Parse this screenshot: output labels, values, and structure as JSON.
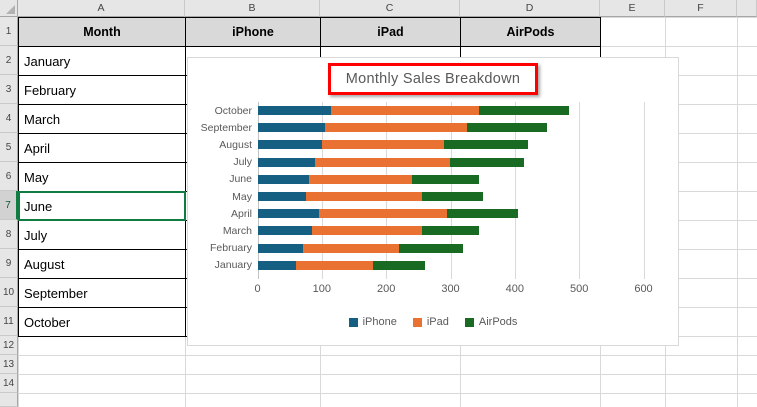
{
  "spreadsheet": {
    "column_headers": [
      "A",
      "B",
      "C",
      "D",
      "E",
      "F"
    ],
    "row_numbers": [
      "1",
      "2",
      "3",
      "4",
      "5",
      "6",
      "7",
      "8",
      "9",
      "10",
      "11",
      "12",
      "13",
      "14"
    ],
    "active_cell": "A7",
    "active_row": "7",
    "table": {
      "headers": [
        "Month",
        "iPhone",
        "iPad",
        "AirPods"
      ],
      "months": [
        "January",
        "February",
        "March",
        "April",
        "May",
        "June",
        "July",
        "August",
        "September",
        "October"
      ]
    }
  },
  "chart_data": {
    "type": "bar",
    "orientation": "horizontal",
    "stacked": true,
    "title": "Monthly Sales Breakdown",
    "title_annotation": {
      "shape": "red-rectangle",
      "color": "#FF0000"
    },
    "categories": [
      "January",
      "February",
      "March",
      "April",
      "May",
      "June",
      "July",
      "August",
      "September",
      "October"
    ],
    "category_axis_order": "January at bottom, October at top",
    "series": [
      {
        "name": "iPhone",
        "color": "#156082",
        "values": [
          60,
          70,
          85,
          95,
          75,
          80,
          90,
          100,
          105,
          115
        ]
      },
      {
        "name": "iPad",
        "color": "#E97132",
        "values": [
          120,
          150,
          170,
          200,
          180,
          160,
          210,
          190,
          220,
          230
        ]
      },
      {
        "name": "AirPods",
        "color": "#196B24",
        "values": [
          80,
          100,
          90,
          110,
          95,
          105,
          115,
          130,
          125,
          140
        ]
      }
    ],
    "totals": [
      260,
      320,
      345,
      405,
      350,
      345,
      415,
      420,
      450,
      485
    ],
    "x_axis": {
      "min": 0,
      "max": 600,
      "tick_step": 100,
      "ticks": [
        0,
        100,
        200,
        300,
        400,
        500,
        600
      ]
    },
    "legend": {
      "position": "bottom",
      "entries": [
        "iPhone",
        "iPad",
        "AirPods"
      ]
    },
    "gridlines": true,
    "colors": {
      "title_text": "#595959",
      "axis_text": "#595959",
      "gridline": "#D9D9D9",
      "active_cell_border": "#107C41"
    }
  }
}
